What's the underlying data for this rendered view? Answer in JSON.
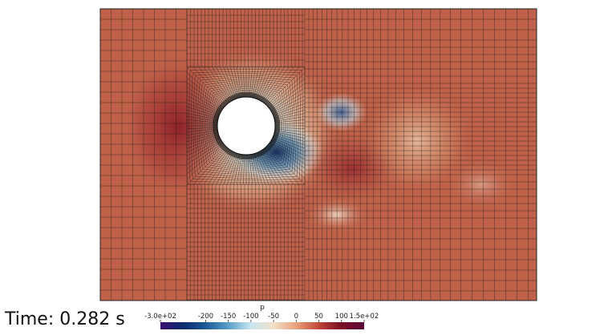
{
  "annotation": {
    "time_text": "Time: 0.282 s"
  },
  "colorbar": {
    "variable": "p",
    "ticks": [
      {
        "value": -300,
        "label": "-3.0e+02"
      },
      {
        "value": -200,
        "label": "-200"
      },
      {
        "value": -150,
        "label": "-150"
      },
      {
        "value": -100,
        "label": "-100"
      },
      {
        "value": -50,
        "label": "-50"
      },
      {
        "value": 0,
        "label": "0"
      },
      {
        "value": 50,
        "label": "50"
      },
      {
        "value": 100,
        "label": "100"
      },
      {
        "value": 150,
        "label": "1.5e+02"
      }
    ],
    "range": [
      -300,
      150
    ],
    "colormap": [
      "#3b0f6f",
      "#0b2c6d",
      "#1f5a99",
      "#5a9fc8",
      "#c8e6f0",
      "#f2dfc8",
      "#e8a27a",
      "#c0473a",
      "#7a0c22",
      "#5a0a3a"
    ]
  },
  "field": {
    "background": "#c0624a",
    "mesh_color": "#1a1a1a"
  }
}
